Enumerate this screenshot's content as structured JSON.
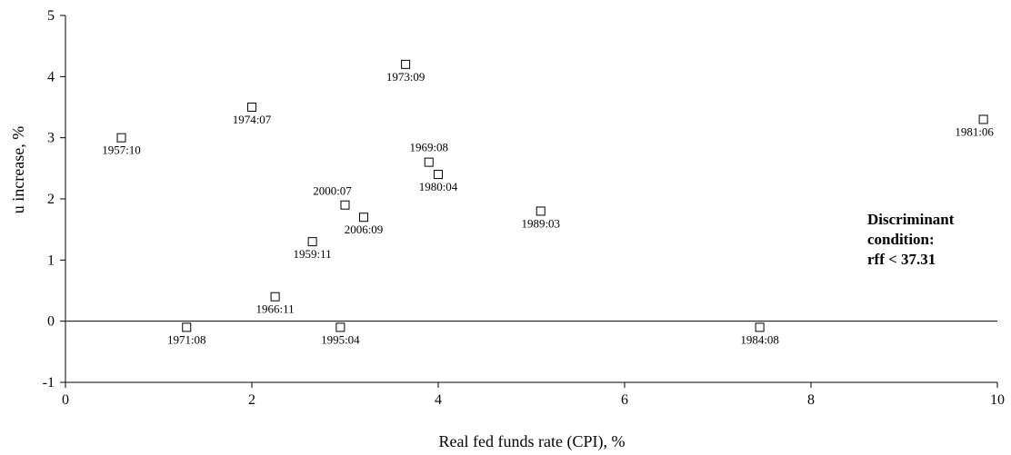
{
  "chart_data": {
    "type": "scatter",
    "title": "",
    "xlabel": "Real fed funds rate (CPI), %",
    "ylabel": "u increase, %",
    "xlim": [
      0,
      10
    ],
    "ylim": [
      -1,
      5
    ],
    "x_ticks": [
      "0",
      "2",
      "4",
      "6",
      "8",
      "10"
    ],
    "y_ticks": [
      "-1",
      "0",
      "1",
      "2",
      "3",
      "4",
      "5"
    ],
    "grid": false,
    "legend": "none",
    "zero_line": true,
    "marker": "square",
    "points": [
      {
        "label": "1957:10",
        "x": 0.6,
        "y": 3.0
      },
      {
        "label": "1959:11",
        "x": 2.65,
        "y": 1.3
      },
      {
        "label": "1966:11",
        "x": 2.25,
        "y": 0.4
      },
      {
        "label": "1969:08",
        "x": 3.9,
        "y": 2.6
      },
      {
        "label": "1971:08",
        "x": 1.3,
        "y": -0.1
      },
      {
        "label": "1973:09",
        "x": 3.65,
        "y": 4.2
      },
      {
        "label": "1974:07",
        "x": 2.0,
        "y": 3.5
      },
      {
        "label": "1980:04",
        "x": 4.0,
        "y": 2.4
      },
      {
        "label": "1981:06",
        "x": 9.85,
        "y": 3.3
      },
      {
        "label": "1984:08",
        "x": 7.45,
        "y": -0.1
      },
      {
        "label": "1989:03",
        "x": 5.1,
        "y": 1.8
      },
      {
        "label": "1995:04",
        "x": 2.95,
        "y": -0.1
      },
      {
        "label": "2000:07",
        "x": 3.0,
        "y": 1.9
      },
      {
        "label": "2006:09",
        "x": 3.2,
        "y": 1.7
      }
    ],
    "annotation": [
      "Discriminant",
      "condition:",
      "rff < 37.31"
    ]
  }
}
